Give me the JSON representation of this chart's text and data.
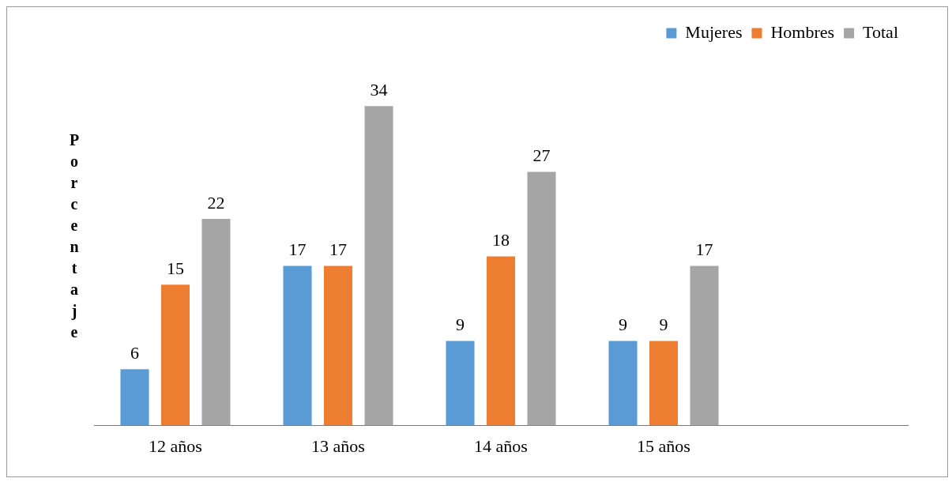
{
  "chart_data": {
    "type": "bar",
    "ylabel": "Porcentaje",
    "categories": [
      "12 años",
      "13 años",
      "14 años",
      "15 años",
      null
    ],
    "series": [
      {
        "name": "Mujeres",
        "color": "#5b9bd5",
        "values": [
          6,
          17,
          9,
          9,
          null
        ]
      },
      {
        "name": "Hombres",
        "color": "#ed7d31",
        "values": [
          15,
          17,
          18,
          9,
          null
        ]
      },
      {
        "name": "Total",
        "color": "#a5a5a5",
        "values": [
          22,
          34,
          27,
          17,
          null
        ]
      }
    ],
    "data_labels": true,
    "legend": "top right",
    "grid": false,
    "tick_labels": "x"
  }
}
